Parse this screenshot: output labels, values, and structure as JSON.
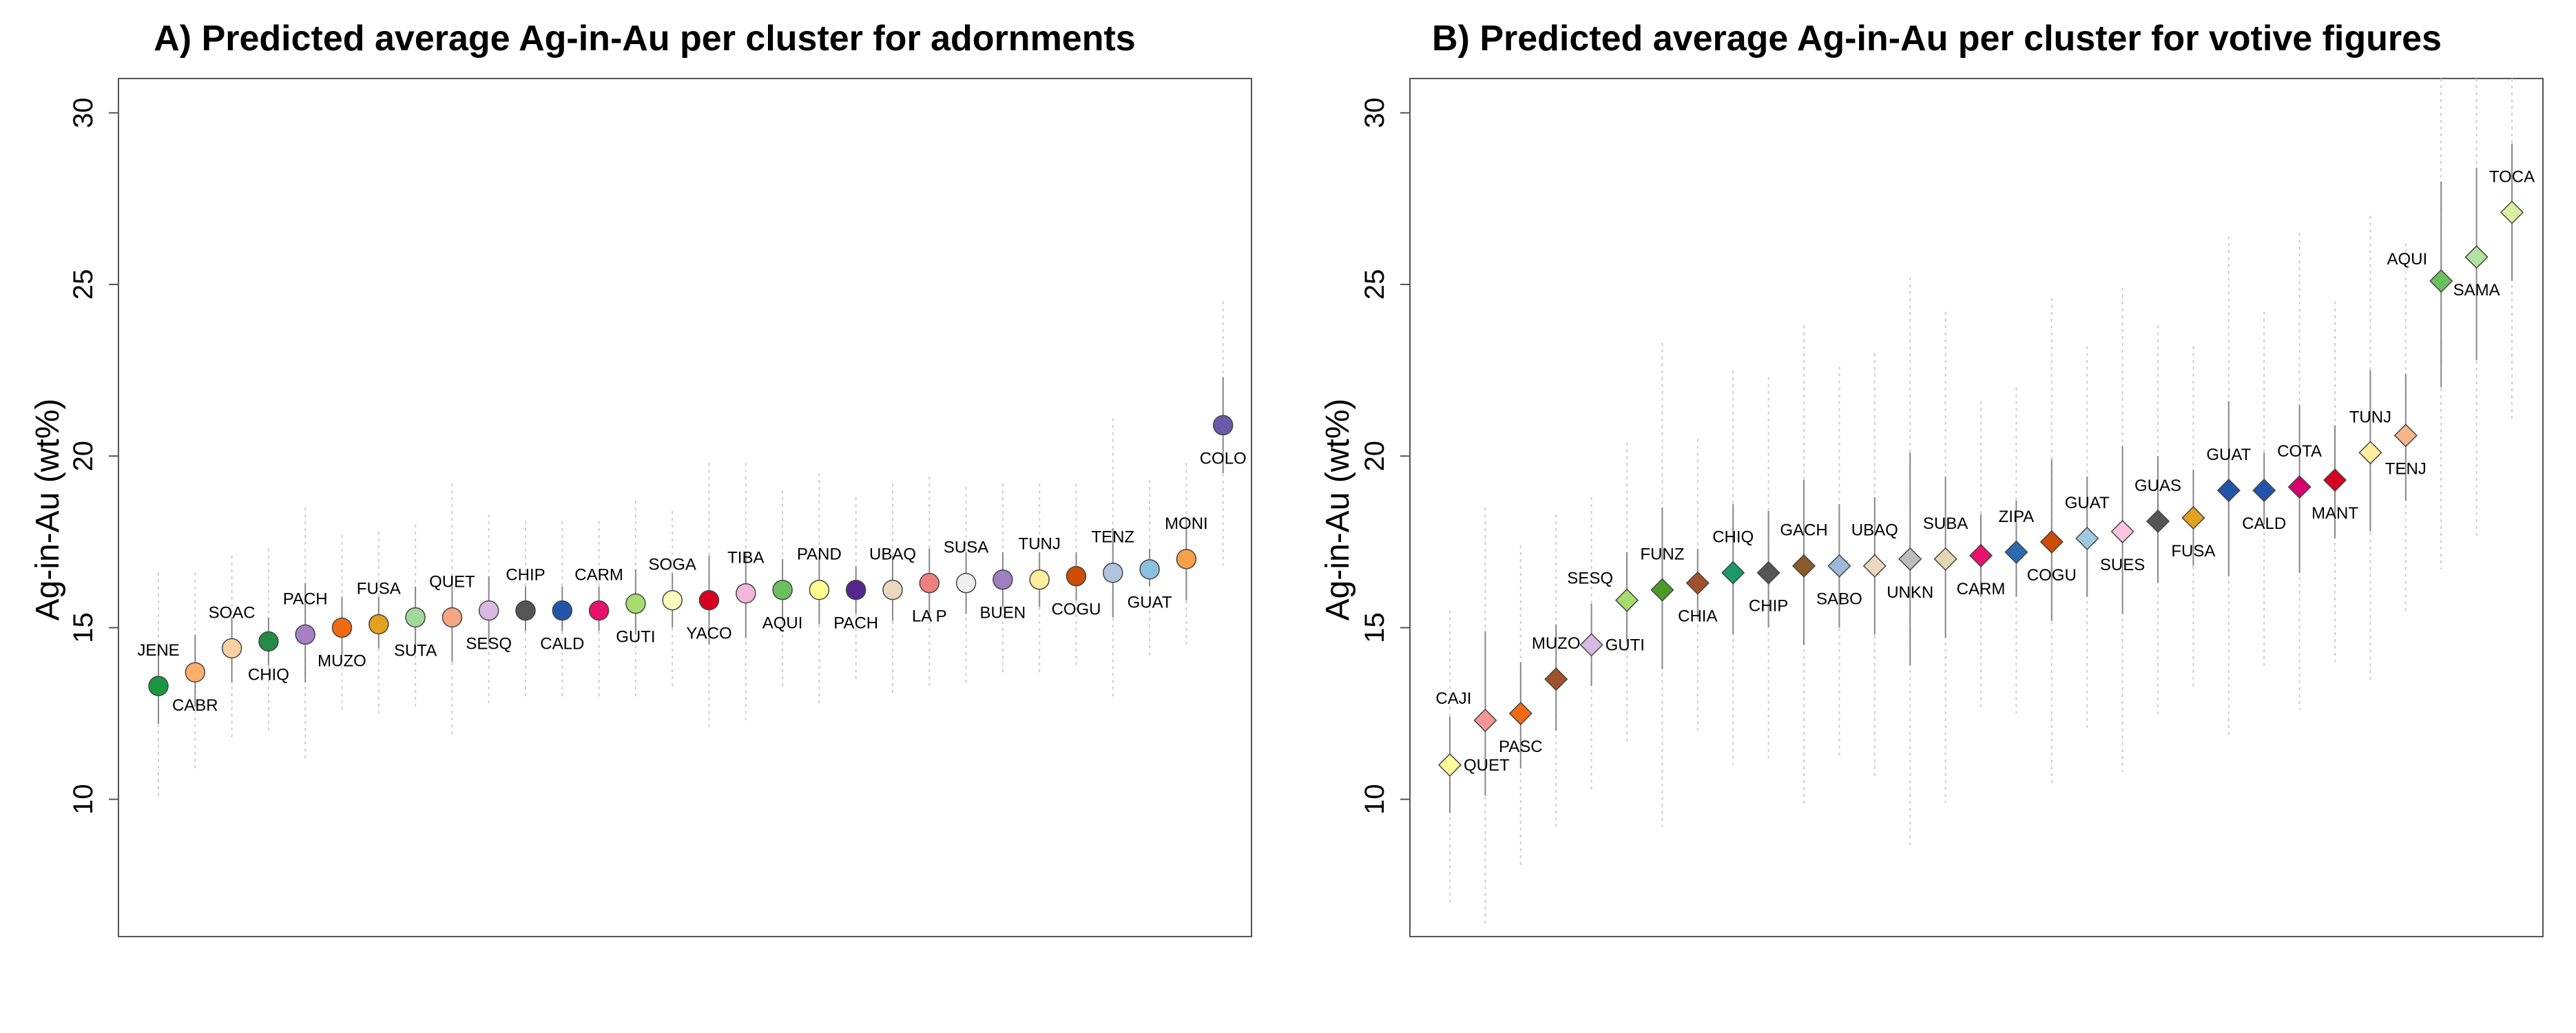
{
  "chart_data": [
    {
      "type": "scatter",
      "title": "A) Predicted average Ag-in-Au per cluster for adornments",
      "ylabel": "Ag-in-Au (wt%)",
      "xlabel": "",
      "ylim": [
        6,
        31
      ],
      "yticks": [
        10,
        15,
        20,
        25,
        30
      ],
      "marker": "circle",
      "grid": false,
      "points": [
        {
          "label": "JENE",
          "value": 13.3,
          "ci": [
            12.2,
            14.5
          ],
          "pi": [
            10.0,
            16.6
          ],
          "label_pos": "above",
          "color": "#1a9641"
        },
        {
          "label": "CABR",
          "value": 13.7,
          "ci": [
            12.7,
            14.8
          ],
          "pi": [
            10.9,
            16.6
          ],
          "label_pos": "below",
          "color": "#fdae6b"
        },
        {
          "label": "SOAC",
          "value": 14.4,
          "ci": [
            13.4,
            15.3
          ],
          "pi": [
            11.8,
            17.1
          ],
          "label_pos": "above",
          "color": "#fdd0a2"
        },
        {
          "label": "CHIQ",
          "value": 14.6,
          "ci": [
            13.9,
            15.3
          ],
          "pi": [
            11.9,
            17.3
          ],
          "label_pos": "below",
          "color": "#238b45"
        },
        {
          "label": "PACH",
          "value": 14.8,
          "ci": [
            13.4,
            16.3
          ],
          "pi": [
            11.1,
            18.5
          ],
          "label_pos": "above",
          "color": "#a77fc4"
        },
        {
          "label": "MUZO",
          "value": 15.0,
          "ci": [
            14.2,
            15.9
          ],
          "pi": [
            12.6,
            17.7
          ],
          "label_pos": "below",
          "color": "#f16913"
        },
        {
          "label": "FUSA",
          "value": 15.1,
          "ci": [
            14.4,
            15.9
          ],
          "pi": [
            12.5,
            17.8
          ],
          "label_pos": "above",
          "color": "#e2a11f"
        },
        {
          "label": "SUTA",
          "value": 15.3,
          "ci": [
            14.3,
            16.2
          ],
          "pi": [
            12.6,
            18.0
          ],
          "label_pos": "below",
          "color": "#a1d99b"
        },
        {
          "label": "QUET",
          "value": 15.3,
          "ci": [
            14.0,
            16.5
          ],
          "pi": [
            11.8,
            19.2
          ],
          "label_pos": "above",
          "color": "#f4a582"
        },
        {
          "label": "SESQ",
          "value": 15.5,
          "ci": [
            14.5,
            16.5
          ],
          "pi": [
            12.8,
            18.3
          ],
          "label_pos": "below",
          "color": "#d8b9e0"
        },
        {
          "label": "CHIP",
          "value": 15.5,
          "ci": [
            14.9,
            16.2
          ],
          "pi": [
            13.0,
            18.1
          ],
          "label_pos": "above",
          "color": "#555555"
        },
        {
          "label": "CALD",
          "value": 15.5,
          "ci": [
            14.9,
            16.2
          ],
          "pi": [
            13.0,
            18.1
          ],
          "label_pos": "below",
          "color": "#2255aa"
        },
        {
          "label": "CARM",
          "value": 15.5,
          "ci": [
            14.9,
            16.2
          ],
          "pi": [
            13.0,
            18.1
          ],
          "label_pos": "above",
          "color": "#e7126a"
        },
        {
          "label": "GUTI",
          "value": 15.7,
          "ci": [
            14.8,
            16.7
          ],
          "pi": [
            12.9,
            18.7
          ],
          "label_pos": "below",
          "color": "#a6dc6e"
        },
        {
          "label": "SOGA",
          "value": 15.8,
          "ci": [
            15.0,
            16.6
          ],
          "pi": [
            13.2,
            18.4
          ],
          "label_pos": "above",
          "color": "#ffffbf"
        },
        {
          "label": "YACO",
          "value": 15.8,
          "ci": [
            14.5,
            17.1
          ],
          "pi": [
            12.0,
            19.8
          ],
          "label_pos": "below",
          "color": "#d7001f"
        },
        {
          "label": "TIBA",
          "value": 16.0,
          "ci": [
            14.7,
            17.2
          ],
          "pi": [
            12.3,
            19.8
          ],
          "label_pos": "above",
          "color": "#f1b6da"
        },
        {
          "label": "AQUI",
          "value": 16.1,
          "ci": [
            15.2,
            17.0
          ],
          "pi": [
            13.2,
            19.0
          ],
          "label_pos": "below",
          "color": "#6cbf5e"
        },
        {
          "label": "PAND",
          "value": 16.1,
          "ci": [
            15.1,
            17.1
          ],
          "pi": [
            12.8,
            19.5
          ],
          "label_pos": "above",
          "color": "#ffff8f"
        },
        {
          "label": "PACH",
          "value": 16.1,
          "ci": [
            15.4,
            16.8
          ],
          "pi": [
            13.4,
            18.8
          ],
          "label_pos": "below",
          "color": "#54278f"
        },
        {
          "label": "UBAQ",
          "value": 16.1,
          "ci": [
            15.2,
            17.1
          ],
          "pi": [
            13.1,
            19.2
          ],
          "label_pos": "above",
          "color": "#ead9c0"
        },
        {
          "label": "LA P",
          "value": 16.3,
          "ci": [
            15.3,
            17.3
          ],
          "pi": [
            13.2,
            19.4
          ],
          "label_pos": "below",
          "color": "#f08080"
        },
        {
          "label": "SUSA",
          "value": 16.3,
          "ci": [
            15.4,
            17.2
          ],
          "pi": [
            13.4,
            19.1
          ],
          "label_pos": "above",
          "color": "#eeeeee"
        },
        {
          "label": "BUEN",
          "value": 16.4,
          "ci": [
            15.6,
            17.2
          ],
          "pi": [
            13.6,
            19.2
          ],
          "label_pos": "below",
          "color": "#9e7fc0"
        },
        {
          "label": "TUNJ",
          "value": 16.4,
          "ci": [
            15.6,
            17.2
          ],
          "pi": [
            13.6,
            19.2
          ],
          "label_pos": "above",
          "color": "#ffeda0"
        },
        {
          "label": "COGU",
          "value": 16.5,
          "ci": [
            15.8,
            17.2
          ],
          "pi": [
            13.8,
            19.2
          ],
          "label_pos": "below",
          "color": "#cc4c02"
        },
        {
          "label": "TENZ",
          "value": 16.6,
          "ci": [
            15.3,
            17.9
          ],
          "pi": [
            12.9,
            21.1
          ],
          "label_pos": "above",
          "color": "#b0c4de"
        },
        {
          "label": "GUAT",
          "value": 16.7,
          "ci": [
            16.2,
            17.3
          ],
          "pi": [
            14.2,
            19.3
          ],
          "label_pos": "below",
          "color": "#8cc0e0"
        },
        {
          "label": "MONI",
          "value": 17.0,
          "ci": [
            15.8,
            18.2
          ],
          "pi": [
            14.4,
            19.8
          ],
          "label_pos": "above",
          "color": "#f5a04a"
        },
        {
          "label": "COLO",
          "value": 20.9,
          "ci": [
            19.5,
            22.3
          ],
          "pi": [
            16.8,
            24.5
          ],
          "label_pos": "below",
          "color": "#6a5aab"
        }
      ]
    },
    {
      "type": "scatter",
      "title": "B) Predicted average Ag-in-Au per cluster for votive figures",
      "ylabel": "Ag-in-Au (wt%)",
      "xlabel": "",
      "ylim": [
        6,
        31
      ],
      "yticks": [
        10,
        15,
        20,
        25,
        30
      ],
      "marker": "diamond",
      "grid": false,
      "points": [
        {
          "label": "QUET",
          "value": 11.0,
          "ci": [
            9.6,
            12.4
          ],
          "pi": [
            7.0,
            15.5
          ],
          "label_pos": "right",
          "color": "#ffff99"
        },
        {
          "label": "CAJI",
          "value": 12.3,
          "ci": [
            10.1,
            14.9
          ],
          "pi": [
            6.3,
            18.5
          ],
          "label_pos": "left-above",
          "color": "#f59696"
        },
        {
          "label": "PASC",
          "value": 12.5,
          "ci": [
            10.9,
            14.0
          ],
          "pi": [
            8.0,
            17.4
          ],
          "label_pos": "below",
          "color": "#f16913"
        },
        {
          "label": "MUZO",
          "value": 13.5,
          "ci": [
            12.0,
            15.1
          ],
          "pi": [
            9.2,
            18.3
          ],
          "label_pos": "above",
          "color": "#a0522d"
        },
        {
          "label": "GUTI",
          "value": 14.5,
          "ci": [
            13.3,
            15.7
          ],
          "pi": [
            10.2,
            18.8
          ],
          "label_pos": "right",
          "color": "#d8b9e0"
        },
        {
          "label": "SESQ",
          "value": 15.8,
          "ci": [
            14.6,
            17.2
          ],
          "pi": [
            11.6,
            20.4
          ],
          "label_pos": "left-above",
          "color": "#a6dc6e"
        },
        {
          "label": "FUNZ",
          "value": 16.1,
          "ci": [
            13.8,
            18.5
          ],
          "pi": [
            9.2,
            23.3
          ],
          "label_pos": "above",
          "color": "#4d9a2a"
        },
        {
          "label": "CHIA",
          "value": 16.3,
          "ci": [
            15.3,
            17.3
          ],
          "pi": [
            12.0,
            20.5
          ],
          "label_pos": "below",
          "color": "#a0522d"
        },
        {
          "label": "CHIQ",
          "value": 16.6,
          "ci": [
            14.8,
            18.6
          ],
          "pi": [
            11.0,
            22.5
          ],
          "label_pos": "above",
          "color": "#1a9a6a"
        },
        {
          "label": "CHIP",
          "value": 16.6,
          "ci": [
            15.0,
            18.4
          ],
          "pi": [
            11.2,
            22.3
          ],
          "label_pos": "below",
          "color": "#555555"
        },
        {
          "label": "GACH",
          "value": 16.8,
          "ci": [
            14.5,
            19.3
          ],
          "pi": [
            9.8,
            23.8
          ],
          "label_pos": "above",
          "color": "#8b5a2b"
        },
        {
          "label": "SABO",
          "value": 16.8,
          "ci": [
            15.0,
            18.6
          ],
          "pi": [
            11.2,
            22.6
          ],
          "label_pos": "below",
          "color": "#9fb8d9"
        },
        {
          "label": "UBAQ",
          "value": 16.8,
          "ci": [
            14.8,
            18.8
          ],
          "pi": [
            10.6,
            23.0
          ],
          "label_pos": "above",
          "color": "#ead9c0"
        },
        {
          "label": "UNKN",
          "value": 17.0,
          "ci": [
            13.9,
            20.1
          ],
          "pi": [
            8.6,
            25.2
          ],
          "label_pos": "below",
          "color": "#bdbdbd"
        },
        {
          "label": "SUBA",
          "value": 17.0,
          "ci": [
            14.7,
            19.4
          ],
          "pi": [
            9.9,
            24.2
          ],
          "label_pos": "above",
          "color": "#e3d6b4"
        },
        {
          "label": "CARM",
          "value": 17.1,
          "ci": [
            15.9,
            18.3
          ],
          "pi": [
            12.6,
            21.6
          ],
          "label_pos": "below",
          "color": "#e7126a"
        },
        {
          "label": "ZIPA",
          "value": 17.2,
          "ci": [
            15.9,
            18.7
          ],
          "pi": [
            12.5,
            22.0
          ],
          "label_pos": "above",
          "color": "#2c6bb0"
        },
        {
          "label": "COGU",
          "value": 17.5,
          "ci": [
            15.2,
            19.9
          ],
          "pi": [
            10.4,
            24.6
          ],
          "label_pos": "below",
          "color": "#cc4c02"
        },
        {
          "label": "GUAT",
          "value": 17.6,
          "ci": [
            15.9,
            19.4
          ],
          "pi": [
            12.0,
            23.2
          ],
          "label_pos": "above",
          "color": "#9ecae1"
        },
        {
          "label": "SUES",
          "value": 17.8,
          "ci": [
            15.4,
            20.3
          ],
          "pi": [
            10.8,
            24.9
          ],
          "label_pos": "below",
          "color": "#fbc4de"
        },
        {
          "label": "GUAS",
          "value": 18.1,
          "ci": [
            16.3,
            20.0
          ],
          "pi": [
            12.4,
            23.8
          ],
          "label_pos": "above",
          "color": "#555555"
        },
        {
          "label": "FUSA",
          "value": 18.2,
          "ci": [
            16.8,
            19.6
          ],
          "pi": [
            13.2,
            23.2
          ],
          "label_pos": "below",
          "color": "#e2a11f"
        },
        {
          "label": "GUAT",
          "value": 19.0,
          "ci": [
            16.5,
            21.6
          ],
          "pi": [
            11.8,
            26.4
          ],
          "label_pos": "above",
          "color": "#2255aa"
        },
        {
          "label": "CALD",
          "value": 19.0,
          "ci": [
            18.0,
            20.1
          ],
          "pi": [
            13.9,
            24.2
          ],
          "label_pos": "below",
          "color": "#2255aa"
        },
        {
          "label": "COTA",
          "value": 19.1,
          "ci": [
            16.6,
            21.5
          ],
          "pi": [
            12.6,
            26.5
          ],
          "label_pos": "above",
          "color": "#d6006e"
        },
        {
          "label": "MANT",
          "value": 19.3,
          "ci": [
            17.6,
            20.9
          ],
          "pi": [
            14.0,
            24.5
          ],
          "label_pos": "below",
          "color": "#d7001f"
        },
        {
          "label": "TUNJ",
          "value": 20.1,
          "ci": [
            17.8,
            22.5
          ],
          "pi": [
            13.4,
            27.0
          ],
          "label_pos": "above",
          "color": "#ffeda0"
        },
        {
          "label": "TENJ",
          "value": 20.6,
          "ci": [
            18.7,
            22.4
          ],
          "pi": [
            15.4,
            26.2
          ],
          "label_pos": "below",
          "color": "#f9b58a"
        },
        {
          "label": "AQUI",
          "value": 25.1,
          "ci": [
            22.0,
            28.0
          ],
          "pi": [
            16.7,
            31.0
          ],
          "label_pos": "left-above",
          "color": "#6cbf5e"
        },
        {
          "label": "SAMA",
          "value": 25.8,
          "ci": [
            22.8,
            28.4
          ],
          "pi": [
            17.6,
            31.0
          ],
          "label_pos": "below",
          "color": "#b2e2a0"
        },
        {
          "label": "TOCA",
          "value": 27.1,
          "ci": [
            25.1,
            29.1
          ],
          "pi": [
            21.0,
            31.0
          ],
          "label_pos": "above",
          "color": "#d9f0a3"
        }
      ]
    }
  ]
}
